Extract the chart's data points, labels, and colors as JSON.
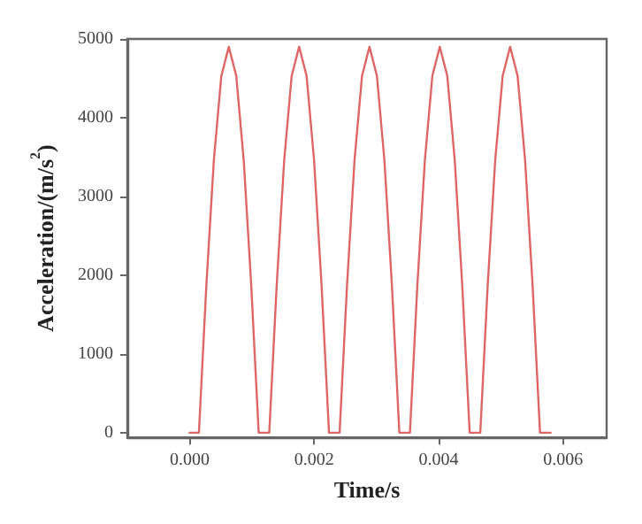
{
  "chart_data": {
    "type": "line",
    "xlabel": "Time/s",
    "ylabel": "Acceleration/(m/s$^{2}$)",
    "xlim": [
      -0.001,
      0.0067
    ],
    "xticks": [
      {
        "value": 0,
        "label": "0.000"
      },
      {
        "value": 0.002,
        "label": "0.002"
      },
      {
        "value": 0.004,
        "label": "0.004"
      },
      {
        "value": 0.006,
        "label": "0.006"
      }
    ],
    "ylim": [
      -60,
      5000
    ],
    "yticks": [
      0,
      1000,
      2000,
      3000,
      4000,
      5000
    ],
    "grid": false,
    "marker": "none",
    "line_style": "solid",
    "series": [
      {
        "color": "#e06666",
        "x": [
          0,
          0.00015,
          0.00027,
          0.00039,
          0.00051,
          0.00063,
          0.00075,
          0.00087,
          0.00099,
          0.00111,
          0.00128,
          0.0014,
          0.00152,
          0.00164,
          0.00176,
          0.00188,
          0.002,
          0.00212,
          0.00224,
          0.00241,
          0.00253,
          0.00265,
          0.00277,
          0.00289,
          0.00301,
          0.00313,
          0.00325,
          0.00337,
          0.00354,
          0.00366,
          0.00378,
          0.0039,
          0.00402,
          0.00414,
          0.00426,
          0.00438,
          0.0045,
          0.00467,
          0.00479,
          0.00491,
          0.00503,
          0.00515,
          0.00527,
          0.00539,
          0.00551,
          0.00563,
          0.0058
        ],
        "values": [
          0,
          0,
          1880,
          3460,
          4530,
          4900,
          4530,
          3460,
          1880,
          0,
          0,
          1880,
          3460,
          4530,
          4900,
          4530,
          3460,
          1880,
          0,
          0,
          1880,
          3460,
          4530,
          4900,
          4530,
          3460,
          1880,
          0,
          0,
          1880,
          3460,
          4530,
          4900,
          4530,
          3460,
          1880,
          0,
          0,
          1880,
          3460,
          4530,
          4900,
          4530,
          3460,
          1880,
          0,
          0
        ]
      }
    ]
  }
}
